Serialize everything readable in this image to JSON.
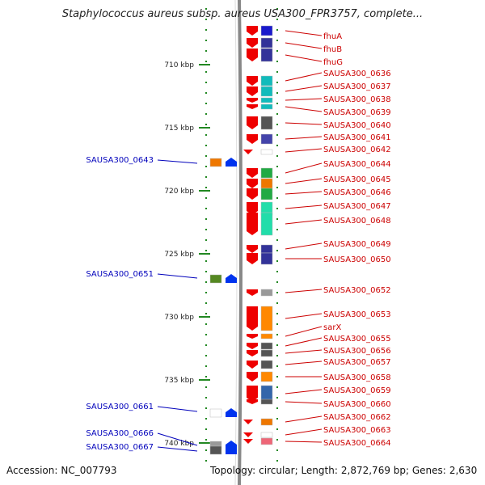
{
  "title": "Staphylococcus aureus subsp. aureus USA300_FPR3757, complete...",
  "footer": {
    "accession_label": "Accession:",
    "accession": "NC_007793",
    "topology_label": "Topology:",
    "topology": "circular",
    "length_label": "Length:",
    "length": "2,872,769 bp",
    "genes_label": "Genes:",
    "genes": "2,630"
  },
  "colors": {
    "forward_label": "#cc0000",
    "reverse_label": "#0000bb",
    "forward_gene": "#ee0000",
    "reverse_gene": "#0033ee",
    "tick": "#228822",
    "axis_label": "#222222"
  },
  "axis": {
    "unit": "kbp",
    "labels": [
      "710 kbp",
      "715 kbp",
      "720 kbp",
      "725 kbp",
      "730 kbp",
      "735 kbp",
      "740 kbp"
    ]
  },
  "forward_genes": [
    {
      "label": "fhuA",
      "category_color": "#1a1acc"
    },
    {
      "label": "fhuB",
      "category_color": "#333399"
    },
    {
      "label": "fhuG",
      "category_color": "#333399"
    },
    {
      "label": "SAUSA300_0636",
      "category_color": "#11bbbb"
    },
    {
      "label": "SAUSA300_0637",
      "category_color": "#11bbbb"
    },
    {
      "label": "SAUSA300_0638",
      "category_color": "#11bbbb"
    },
    {
      "label": "SAUSA300_0639",
      "category_color": "#11bbbb"
    },
    {
      "label": "SAUSA300_0640",
      "category_color": "#555555"
    },
    {
      "label": "SAUSA300_0641",
      "category_color": "#4444aa"
    },
    {
      "label": "SAUSA300_0642",
      "category_color": "#ffffff"
    },
    {
      "label": "SAUSA300_0644",
      "category_color": "#22aa44"
    },
    {
      "label": "SAUSA300_0645",
      "category_color": "#ee7700"
    },
    {
      "label": "SAUSA300_0646",
      "category_color": "#22aa44"
    },
    {
      "label": "SAUSA300_0647",
      "category_color": "#22ddaa"
    },
    {
      "label": "SAUSA300_0648",
      "category_color": "#22ddaa"
    },
    {
      "label": "SAUSA300_0649",
      "category_color": "#333399"
    },
    {
      "label": "SAUSA300_0650",
      "category_color": "#333399"
    },
    {
      "label": "SAUSA300_0652",
      "category_color": "#999999"
    },
    {
      "label": "SAUSA300_0653",
      "category_color": "#ff8800"
    },
    {
      "label": "sarX",
      "category_color": "#ff8800"
    },
    {
      "label": "SAUSA300_0655",
      "category_color": "#555555"
    },
    {
      "label": "SAUSA300_0656",
      "category_color": "#555555"
    },
    {
      "label": "SAUSA300_0657",
      "category_color": "#555555"
    },
    {
      "label": "SAUSA300_0658",
      "category_color": "#ff8800"
    },
    {
      "label": "SAUSA300_0659",
      "category_color": "#3366aa"
    },
    {
      "label": "SAUSA300_0660",
      "category_color": "#555555"
    },
    {
      "label": "SAUSA300_0662",
      "category_color": "#ee7700"
    },
    {
      "label": "SAUSA300_0663",
      "category_color": "#ffffff"
    },
    {
      "label": "SAUSA300_0664",
      "category_color": "#ee6677"
    }
  ],
  "reverse_genes": [
    {
      "label": "SAUSA300_0643",
      "category_color": "#ee7700"
    },
    {
      "label": "SAUSA300_0651",
      "category_color": "#558822"
    },
    {
      "label": "SAUSA300_0661",
      "category_color": "#ffffff"
    },
    {
      "label": "SAUSA300_0666",
      "category_color": "#999999"
    },
    {
      "label": "SAUSA300_0667",
      "category_color": "#555555"
    }
  ]
}
